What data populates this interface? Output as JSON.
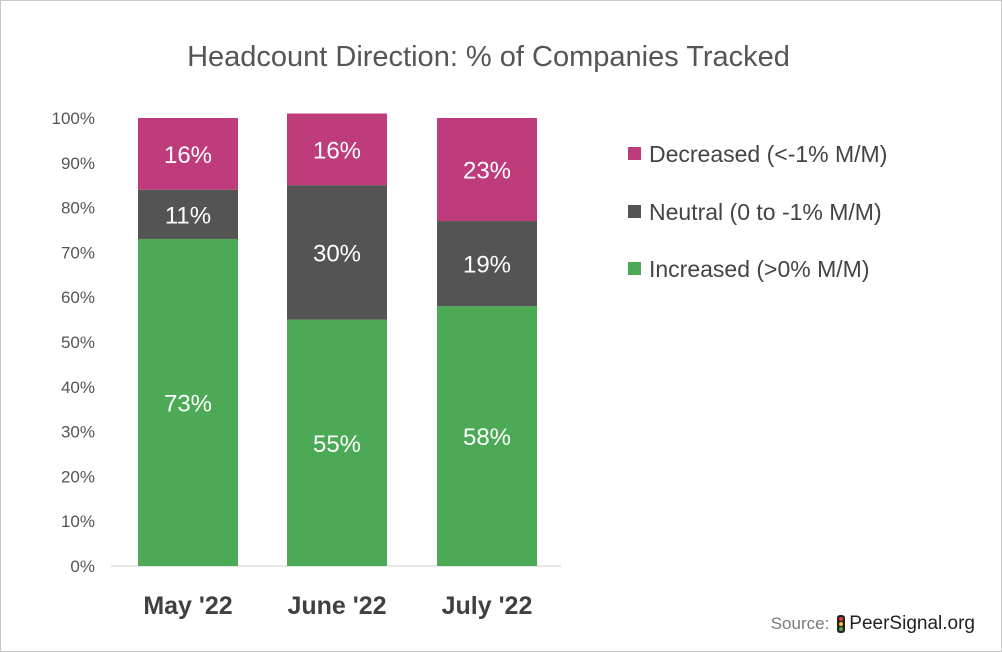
{
  "chart_data": {
    "type": "stacked-bar",
    "title": "Headcount Direction: % of Companies Tracked",
    "categories": [
      "May '22",
      "June '22",
      "July '22"
    ],
    "series": [
      {
        "name": "Increased (>0% M/M)",
        "values": [
          73,
          55,
          58
        ],
        "color": "#4caa57",
        "labels": [
          "73%",
          "55%",
          "58%"
        ]
      },
      {
        "name": "Neutral (0 to -1% M/M)",
        "values": [
          11,
          30,
          19
        ],
        "color": "#545454",
        "labels": [
          "11%",
          "30%",
          "19%"
        ]
      },
      {
        "name": "Decreased (<-1% M/M)",
        "values": [
          16,
          16,
          23
        ],
        "color": "#be3b7c",
        "labels": [
          "16%",
          "16%",
          "23%"
        ]
      }
    ],
    "ylim": [
      0,
      100
    ],
    "yticks": [
      "0%",
      "10%",
      "20%",
      "30%",
      "40%",
      "50%",
      "60%",
      "70%",
      "80%",
      "90%",
      "100%"
    ],
    "legend_position": "right",
    "legend_order": [
      "Decreased (<-1% M/M)",
      "Neutral (0 to -1% M/M)",
      "Increased (>0% M/M)"
    ],
    "grid": false
  },
  "source": {
    "label": "Source:",
    "brand": "PeerSignal.org",
    "icon": "traffic-light-icon"
  }
}
